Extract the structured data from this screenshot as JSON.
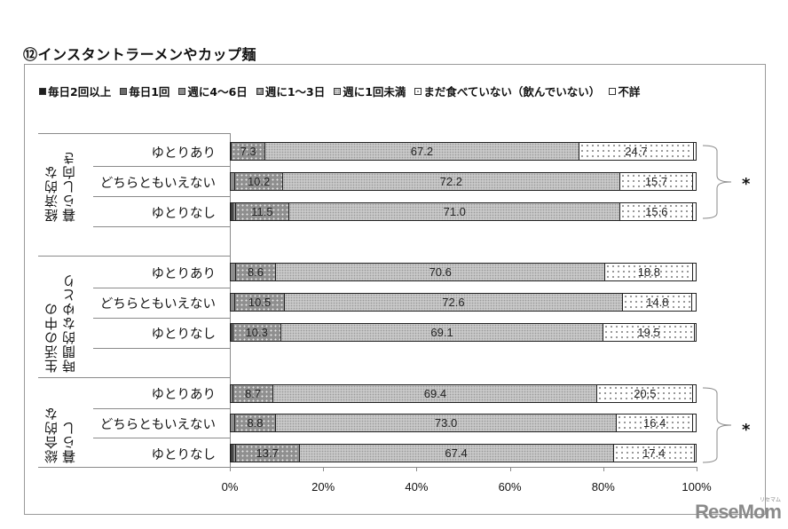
{
  "title": "⑫インスタントラーメンやカップ麺",
  "legend": [
    {
      "label": "毎日2回以上",
      "class": "c0"
    },
    {
      "label": "毎日1回",
      "class": "c1"
    },
    {
      "label": "週に4～6日",
      "class": "c2"
    },
    {
      "label": "週に1～3日",
      "class": "c3"
    },
    {
      "label": "週に1回未満",
      "class": "c4"
    },
    {
      "label": "まだ食べていない（飲んでいない）",
      "class": "c5"
    },
    {
      "label": "不詳",
      "class": "c6"
    }
  ],
  "groups": [
    {
      "label_lines": [
        "経済的な",
        "暮らし向き"
      ],
      "significance": "*",
      "rows": [
        {
          "label": "ゆとりあり"
        },
        {
          "label": "どちらともいえない"
        },
        {
          "label": "ゆとりなし"
        }
      ]
    },
    {
      "label_lines": [
        "生活の中の",
        "時間的なゆとり"
      ],
      "significance": "",
      "rows": [
        {
          "label": "ゆとりあり"
        },
        {
          "label": "どちらともいえない"
        },
        {
          "label": "ゆとりなし"
        }
      ]
    },
    {
      "label_lines": [
        "総合的な",
        "暮らし"
      ],
      "significance": "*",
      "rows": [
        {
          "label": "ゆとりあり"
        },
        {
          "label": "どちらともいえない"
        },
        {
          "label": "ゆとりなし"
        }
      ]
    }
  ],
  "x_ticks": [
    "0%",
    "20%",
    "40%",
    "60%",
    "80%",
    "100%"
  ],
  "watermark": "ReseMom",
  "watermark_small": "リセマム",
  "chart_data": {
    "type": "bar",
    "orientation": "horizontal",
    "stacked": true,
    "percent": true,
    "title": "⑫インスタントラーメンやカップ麺",
    "xlabel": "",
    "ylabel": "",
    "xlim": [
      0,
      100
    ],
    "legend_position": "top",
    "grid": false,
    "categories": [
      "経済的な暮らし向き / ゆとりあり",
      "経済的な暮らし向き / どちらともいえない",
      "経済的な暮らし向き / ゆとりなし",
      "生活の中の時間的なゆとり / ゆとりあり",
      "生活の中の時間的なゆとり / どちらともいえない",
      "生活の中の時間的なゆとり / ゆとりなし",
      "総合的な暮らし / ゆとりあり",
      "総合的な暮らし / どちらともいえない",
      "総合的な暮らし / ゆとりなし"
    ],
    "series": [
      {
        "name": "毎日2回以上",
        "values": [
          0.0,
          0.0,
          0.3,
          0.0,
          0.0,
          0.4,
          0.0,
          0.0,
          0.2
        ]
      },
      {
        "name": "毎日1回",
        "values": [
          0.0,
          0.0,
          0.4,
          0.0,
          0.0,
          0.0,
          0.0,
          0.0,
          0.3
        ]
      },
      {
        "name": "週に4～6日",
        "values": [
          0.3,
          1.2,
          0.5,
          1.3,
          1.2,
          0.3,
          0.7,
          1.1,
          0.6
        ]
      },
      {
        "name": "週に1～3日",
        "values": [
          7.3,
          10.2,
          11.5,
          8.6,
          10.5,
          10.3,
          8.7,
          8.8,
          13.7
        ]
      },
      {
        "name": "週に1回未満",
        "values": [
          67.2,
          72.2,
          71.0,
          70.6,
          72.6,
          69.1,
          69.4,
          73.0,
          67.4
        ]
      },
      {
        "name": "まだ食べていない（飲んでいない）",
        "values": [
          24.7,
          15.7,
          15.6,
          18.8,
          14.8,
          19.5,
          20.5,
          16.4,
          17.4
        ]
      },
      {
        "name": "不詳",
        "values": [
          0.5,
          0.7,
          0.7,
          0.7,
          0.9,
          0.4,
          0.7,
          0.7,
          0.4
        ]
      }
    ],
    "data_labels_shown_for": [
      "週に1～3日",
      "週に1回未満",
      "まだ食べていない（飲んでいない）"
    ],
    "x_ticks": [
      "0%",
      "20%",
      "40%",
      "60%",
      "80%",
      "100%"
    ],
    "annotations": [
      "* (経済的な暮らし向き)",
      "* (総合的な暮らし)"
    ]
  }
}
